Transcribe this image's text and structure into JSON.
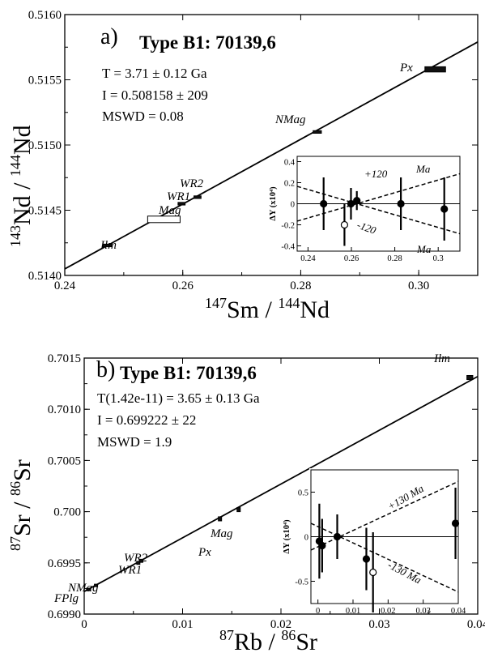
{
  "chart_data": [
    {
      "id": "a",
      "type": "scatter",
      "panel_label": "a)",
      "title": "Type B1: 70139,6",
      "annotations": [
        "T = 3.71 ± 0.12 Ga",
        "I = 0.508158 ± 209",
        "MSWD = 0.08"
      ],
      "xlabel_parts": [
        "147",
        "Sm / ",
        "144",
        "Nd"
      ],
      "ylabel_parts": [
        "143",
        "Nd / ",
        "144",
        "Nd"
      ],
      "xlim": [
        0.24,
        0.31
      ],
      "ylim": [
        0.514,
        0.516
      ],
      "x_ticks": [
        0.24,
        0.26,
        0.28,
        0.3
      ],
      "x_tick_labels": [
        "0.24",
        "0.26",
        "0.28",
        "0.30"
      ],
      "y_ticks": [
        0.514,
        0.5145,
        0.515,
        0.5155,
        0.516
      ],
      "y_tick_labels": [
        "0.5140",
        "0.5145",
        "0.5150",
        "0.5155",
        "0.5160"
      ],
      "isochron": {
        "x": [
          0.24,
          0.31
        ],
        "y": [
          0.51405,
          0.51579
        ]
      },
      "points": [
        {
          "label": "Ilm",
          "x": 0.2472,
          "y": 0.51423,
          "w": 0.0014,
          "h": 2e-05
        },
        {
          "label": "Mag",
          "x": 0.2568,
          "y": 0.51443,
          "w": 0.0055,
          "h": 5e-05
        },
        {
          "label": "WR1",
          "x": 0.2598,
          "y": 0.51455,
          "w": 0.0012,
          "h": 2e-05
        },
        {
          "label": "WR2",
          "x": 0.2625,
          "y": 0.5146,
          "w": 0.0012,
          "h": 2e-05
        },
        {
          "label": "NMag",
          "x": 0.2828,
          "y": 0.5151,
          "w": 0.0014,
          "h": 2e-05
        },
        {
          "label": "Px",
          "x": 0.3028,
          "y": 0.51558,
          "w": 0.0035,
          "h": 4e-05
        }
      ],
      "inset": {
        "ylabel": "ΔY (x10⁴)",
        "xlim": [
          0.235,
          0.31
        ],
        "ylim": [
          -0.45,
          0.45
        ],
        "x_ticks": [
          0.24,
          0.26,
          0.28,
          0.3
        ],
        "x_tick_labels": [
          "0.24",
          "0.26",
          "0.28",
          "0.3"
        ],
        "y_ticks": [
          -0.4,
          -0.2,
          0,
          0.2,
          0.4
        ],
        "y_tick_labels": [
          "-0.4",
          "-0.2",
          "0",
          "0.2",
          "0.4"
        ],
        "envelope_labels": [
          "+120",
          "Ma",
          "-120",
          "Ma"
        ],
        "envelope": [
          {
            "x": [
              0.235,
              0.31
            ],
            "y": [
              -0.165,
              0.285
            ]
          },
          {
            "x": [
              0.235,
              0.31
            ],
            "y": [
              0.165,
              -0.285
            ]
          }
        ],
        "points": [
          {
            "x": 0.2472,
            "y": 0.0,
            "err": 0.25,
            "open": false
          },
          {
            "x": 0.2568,
            "y": -0.2,
            "err": 0.2,
            "open": true
          },
          {
            "x": 0.2598,
            "y": 0.0,
            "err": 0.15,
            "open": false
          },
          {
            "x": 0.2625,
            "y": 0.03,
            "err": 0.09,
            "open": false
          },
          {
            "x": 0.2828,
            "y": 0.0,
            "err": 0.25,
            "open": false
          },
          {
            "x": 0.3028,
            "y": -0.05,
            "err": 0.3,
            "open": false
          }
        ]
      }
    },
    {
      "id": "b",
      "type": "scatter",
      "panel_label": "b)",
      "title": "Type B1: 70139,6",
      "annotations": [
        "T(1.42e-11) = 3.65 ± 0.13 Ga",
        "I = 0.699222 ± 22",
        "MSWD = 1.9"
      ],
      "xlabel_parts": [
        "87",
        "Rb / ",
        "86",
        "Sr"
      ],
      "ylabel_parts": [
        "87",
        "Sr / ",
        "86",
        "Sr"
      ],
      "xlim": [
        0,
        0.04
      ],
      "ylim": [
        0.699,
        0.7015
      ],
      "x_ticks": [
        0,
        0.01,
        0.02,
        0.03,
        0.04
      ],
      "x_tick_labels": [
        "0",
        "0.01",
        "0.02",
        "0.03",
        "0.04"
      ],
      "y_ticks": [
        0.699,
        0.6995,
        0.7,
        0.7005,
        0.701,
        0.7015
      ],
      "y_tick_labels": [
        "0.6990",
        "0.6995",
        "0.700",
        "0.7005",
        "0.7010",
        "0.7015"
      ],
      "isochron": {
        "x": [
          0,
          0.04
        ],
        "y": [
          0.69922,
          0.70132
        ]
      },
      "points": [
        {
          "label": "FPlg",
          "x": 0.0004,
          "y": 0.69924,
          "w": 0.0002,
          "h": 2e-05
        },
        {
          "label": "NMag",
          "x": 0.0012,
          "y": 0.69928,
          "w": 0.0002,
          "h": 2e-05
        },
        {
          "label": "WR1",
          "x": 0.0055,
          "y": 0.6995,
          "w": 0.0002,
          "h": 3e-05
        },
        {
          "label": "WR2",
          "x": 0.0058,
          "y": 0.69952,
          "w": 0.0002,
          "h": 3e-05
        },
        {
          "label": "Px",
          "x": 0.0138,
          "y": 0.69993,
          "w": 0.0003,
          "h": 4e-05
        },
        {
          "label": "Mag",
          "x": 0.0157,
          "y": 0.70002,
          "w": 0.0003,
          "h": 4e-05
        },
        {
          "label": "Ilm",
          "x": 0.0392,
          "y": 0.70131,
          "w": 0.0006,
          "h": 4e-05
        }
      ],
      "inset": {
        "ylabel": "ΔY (x10⁴)",
        "xlim": [
          -0.002,
          0.04
        ],
        "ylim": [
          -0.75,
          0.75
        ],
        "x_ticks": [
          0,
          0.01,
          0.02,
          0.03,
          0.04
        ],
        "x_tick_labels": [
          "0",
          "0.01",
          "0.02",
          "0.03",
          "0.04"
        ],
        "y_ticks": [
          -0.5,
          0,
          0.5
        ],
        "y_tick_labels": [
          "-0.5",
          "0",
          "0.5"
        ],
        "envelope_labels": [
          "+130 Ma",
          "-130 Ma"
        ],
        "envelope": [
          {
            "x": [
              -0.002,
              0.04
            ],
            "y": [
              -0.15,
              0.62
            ]
          },
          {
            "x": [
              -0.002,
              0.04
            ],
            "y": [
              0.15,
              -0.62
            ]
          }
        ],
        "points": [
          {
            "x": 0.0004,
            "y": -0.05,
            "err": 0.42,
            "open": false
          },
          {
            "x": 0.0012,
            "y": -0.1,
            "err": 0.3,
            "open": false
          },
          {
            "x": 0.0055,
            "y": 0.0,
            "err": 0.25,
            "open": false
          },
          {
            "x": 0.0138,
            "y": -0.25,
            "err": 0.35,
            "open": false
          },
          {
            "x": 0.0157,
            "y": -0.4,
            "err": 0.45,
            "open": true
          },
          {
            "x": 0.0392,
            "y": 0.15,
            "err": 0.4,
            "open": false
          }
        ]
      }
    }
  ]
}
